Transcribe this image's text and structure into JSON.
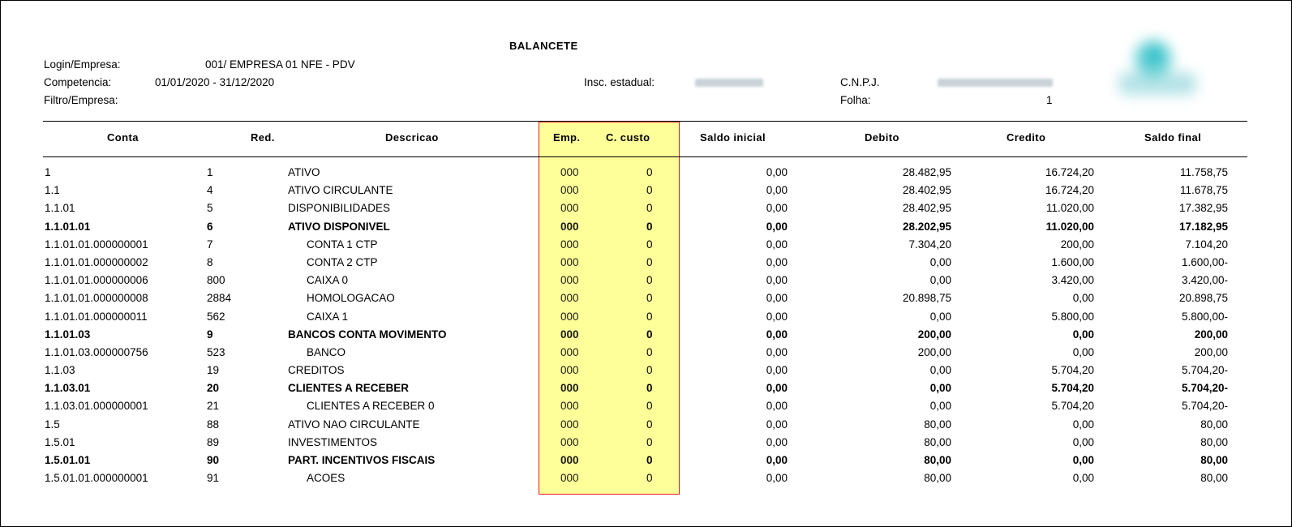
{
  "title": "BALANCETE",
  "header": {
    "login_label": "Login/Empresa:",
    "login_value": "001/  EMPRESA 01 NFE - PDV",
    "competencia_label": "Competencia:",
    "competencia_value": "01/01/2020  -  31/12/2020",
    "filtro_label": "Filtro/Empresa:",
    "insc_label": "Insc. estadual:",
    "cnpj_label": "C.N.P.J.",
    "folha_label": "Folha:",
    "folha_value": "1"
  },
  "columns": {
    "conta": "Conta",
    "red": "Red.",
    "descricao": "Descricao",
    "emp": "Emp.",
    "ccusto": "C. custo",
    "saldo_inicial": "Saldo inicial",
    "debito": "Debito",
    "credito": "Credito",
    "saldo_final": "Saldo final"
  },
  "rows": [
    {
      "conta": "1",
      "red": "1",
      "desc": "ATIVO",
      "emp": "000",
      "cc": "0",
      "si": "0,00",
      "deb": "28.482,95",
      "cred": "16.724,20",
      "sf": "11.758,75",
      "bold": false,
      "indent": false
    },
    {
      "conta": "1.1",
      "red": "4",
      "desc": "ATIVO CIRCULANTE",
      "emp": "000",
      "cc": "0",
      "si": "0,00",
      "deb": "28.402,95",
      "cred": "16.724,20",
      "sf": "11.678,75",
      "bold": false,
      "indent": false
    },
    {
      "conta": "1.1.01",
      "red": "5",
      "desc": "DISPONIBILIDADES",
      "emp": "000",
      "cc": "0",
      "si": "0,00",
      "deb": "28.402,95",
      "cred": "11.020,00",
      "sf": "17.382,95",
      "bold": false,
      "indent": false
    },
    {
      "conta": "1.1.01.01",
      "red": "6",
      "desc": "ATIVO DISPONIVEL",
      "emp": "000",
      "cc": "0",
      "si": "0,00",
      "deb": "28.202,95",
      "cred": "11.020,00",
      "sf": "17.182,95",
      "bold": true,
      "indent": false
    },
    {
      "conta": "1.1.01.01.000000001",
      "red": "7",
      "desc": "CONTA 1 CTP",
      "emp": "000",
      "cc": "0",
      "si": "0,00",
      "deb": "7.304,20",
      "cred": "200,00",
      "sf": "7.104,20",
      "bold": false,
      "indent": true
    },
    {
      "conta": "1.1.01.01.000000002",
      "red": "8",
      "desc": "CONTA 2 CTP",
      "emp": "000",
      "cc": "0",
      "si": "0,00",
      "deb": "0,00",
      "cred": "1.600,00",
      "sf": "1.600,00-",
      "bold": false,
      "indent": true
    },
    {
      "conta": "1.1.01.01.000000006",
      "red": "800",
      "desc": "CAIXA 0",
      "emp": "000",
      "cc": "0",
      "si": "0,00",
      "deb": "0,00",
      "cred": "3.420,00",
      "sf": "3.420,00-",
      "bold": false,
      "indent": true
    },
    {
      "conta": "1.1.01.01.000000008",
      "red": "2884",
      "desc": "HOMOLOGACAO",
      "emp": "000",
      "cc": "0",
      "si": "0,00",
      "deb": "20.898,75",
      "cred": "0,00",
      "sf": "20.898,75",
      "bold": false,
      "indent": true
    },
    {
      "conta": "1.1.01.01.000000011",
      "red": "562",
      "desc": "CAIXA 1",
      "emp": "000",
      "cc": "0",
      "si": "0,00",
      "deb": "0,00",
      "cred": "5.800,00",
      "sf": "5.800,00-",
      "bold": false,
      "indent": true
    },
    {
      "conta": "1.1.01.03",
      "red": "9",
      "desc": "BANCOS CONTA MOVIMENTO",
      "emp": "000",
      "cc": "0",
      "si": "0,00",
      "deb": "200,00",
      "cred": "0,00",
      "sf": "200,00",
      "bold": true,
      "indent": false
    },
    {
      "conta": "1.1.01.03.000000756",
      "red": "523",
      "desc": "BANCO",
      "emp": "000",
      "cc": "0",
      "si": "0,00",
      "deb": "200,00",
      "cred": "0,00",
      "sf": "200,00",
      "bold": false,
      "indent": true
    },
    {
      "conta": "1.1.03",
      "red": "19",
      "desc": "CREDITOS",
      "emp": "000",
      "cc": "0",
      "si": "0,00",
      "deb": "0,00",
      "cred": "5.704,20",
      "sf": "5.704,20-",
      "bold": false,
      "indent": false
    },
    {
      "conta": "1.1.03.01",
      "red": "20",
      "desc": "CLIENTES A RECEBER",
      "emp": "000",
      "cc": "0",
      "si": "0,00",
      "deb": "0,00",
      "cred": "5.704,20",
      "sf": "5.704,20-",
      "bold": true,
      "indent": false
    },
    {
      "conta": "1.1.03.01.000000001",
      "red": "21",
      "desc": "CLIENTES A RECEBER 0",
      "emp": "000",
      "cc": "0",
      "si": "0,00",
      "deb": "0,00",
      "cred": "5.704,20",
      "sf": "5.704,20-",
      "bold": false,
      "indent": true
    },
    {
      "conta": "1.5",
      "red": "88",
      "desc": "ATIVO NAO CIRCULANTE",
      "emp": "000",
      "cc": "0",
      "si": "0,00",
      "deb": "80,00",
      "cred": "0,00",
      "sf": "80,00",
      "bold": false,
      "indent": false
    },
    {
      "conta": "1.5.01",
      "red": "89",
      "desc": "INVESTIMENTOS",
      "emp": "000",
      "cc": "0",
      "si": "0,00",
      "deb": "80,00",
      "cred": "0,00",
      "sf": "80,00",
      "bold": false,
      "indent": false
    },
    {
      "conta": "1.5.01.01",
      "red": "90",
      "desc": "PART. INCENTIVOS FISCAIS",
      "emp": "000",
      "cc": "0",
      "si": "0,00",
      "deb": "80,00",
      "cred": "0,00",
      "sf": "80,00",
      "bold": true,
      "indent": false
    },
    {
      "conta": "1.5.01.01.000000001",
      "red": "91",
      "desc": "ACOES",
      "emp": "000",
      "cc": "0",
      "si": "0,00",
      "deb": "80,00",
      "cred": "0,00",
      "sf": "80,00",
      "bold": false,
      "indent": true
    }
  ],
  "colors": {
    "highlight_fill": "#ffff99",
    "highlight_border": "#e11b1b"
  }
}
